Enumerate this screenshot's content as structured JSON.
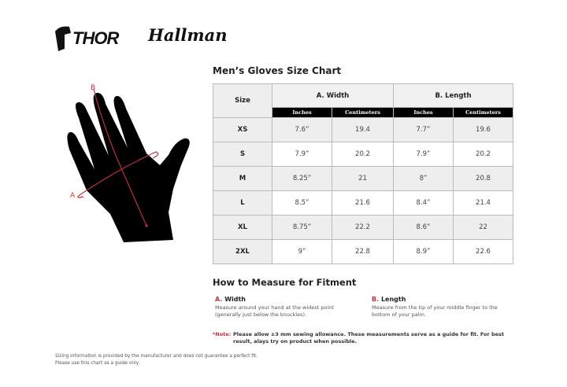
{
  "brand": {
    "logo1": "THOR",
    "logo2": "Hallman"
  },
  "diagram": {
    "label_a": "A",
    "label_b": "B",
    "accent": "#c0313b"
  },
  "chart": {
    "title": "Men’s Gloves Size Chart",
    "size_header": "Size",
    "group_a": "A. Width",
    "group_b": "B. Length",
    "units": [
      "Inches",
      "Centimeters",
      "Inches",
      "Centimeters"
    ],
    "rows": [
      {
        "size": "XS",
        "w_in": "7.6”",
        "w_cm": "19.4",
        "l_in": "7.7”",
        "l_cm": "19.6"
      },
      {
        "size": "S",
        "w_in": "7.9”",
        "w_cm": "20.2",
        "l_in": "7.9”",
        "l_cm": "20.2"
      },
      {
        "size": "M",
        "w_in": "8.25”",
        "w_cm": "21",
        "l_in": "8”",
        "l_cm": "20.8"
      },
      {
        "size": "L",
        "w_in": "8.5”",
        "w_cm": "21.6",
        "l_in": "8.4”",
        "l_cm": "21.4"
      },
      {
        "size": "XL",
        "w_in": "8.75”",
        "w_cm": "22.2",
        "l_in": "8.6”",
        "l_cm": "22"
      },
      {
        "size": "2XL",
        "w_in": "9”",
        "w_cm": "22.8",
        "l_in": "8.9”",
        "l_cm": "22.6"
      }
    ]
  },
  "measure": {
    "title": "How to Measure for Fitment",
    "a_letter": "A.",
    "a_title": "Width",
    "a_desc": "Measure around your hand at the widest point (generally just below the knuckles).",
    "b_letter": "B.",
    "b_title": "Length",
    "b_desc": "Measure from the tip of your middle finger to the bottom of your palm.",
    "note_label": "*Note:",
    "note_text": "Please allow ±3 mm sewing allowance. These measurements serve as a guide for fit. For best result, alays try on product when possible."
  },
  "disclaimer": [
    "Sizing information is provided by the manufacturer and does not guarantee a perfect fit.",
    "Please use this chart as a guide only."
  ]
}
